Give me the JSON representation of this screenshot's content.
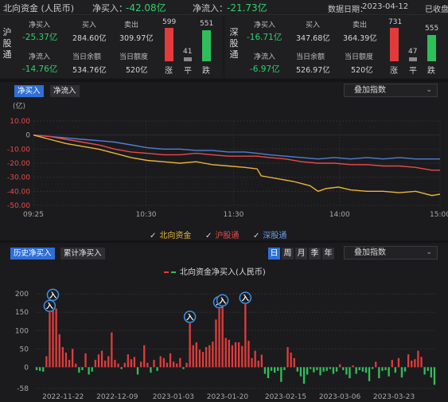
{
  "header": {
    "title": "北向资金 (人民币)",
    "net_buy_label": "净买入：",
    "net_buy_value": "-42.08亿",
    "net_inflow_label": "净流入：",
    "net_inflow_value": "-21.73亿",
    "date_label": "数据日期：",
    "date_value": "2023-04-12",
    "status": "已收盘"
  },
  "panels": [
    {
      "name": "沪股通",
      "net_buy_label": "净买入",
      "net_buy_value": "-25.37亿",
      "buy_label": "买入",
      "buy_value": "284.60亿",
      "sell_label": "卖出",
      "sell_value": "309.97亿",
      "net_inflow_label": "净流入",
      "net_inflow_value": "-14.76亿",
      "balance_label": "当日余额",
      "balance_value": "534.76亿",
      "quota_label": "当日额度",
      "quota_value": "520亿",
      "up_count": "599",
      "flat_count": "41",
      "down_count": "551",
      "up_label": "涨",
      "flat_label": "平",
      "down_label": "跌"
    },
    {
      "name": "深股通",
      "net_buy_label": "净买入",
      "net_buy_value": "-16.71亿",
      "buy_label": "买入",
      "buy_value": "347.68亿",
      "sell_label": "卖出",
      "sell_value": "364.39亿",
      "net_inflow_label": "净流入",
      "net_inflow_value": "-6.97亿",
      "balance_label": "当日余额",
      "balance_value": "526.97亿",
      "quota_label": "当日额度",
      "quota_value": "520亿",
      "up_count": "731",
      "flat_count": "47",
      "down_count": "555",
      "up_label": "涨",
      "flat_label": "平",
      "down_label": "跌"
    }
  ],
  "intraday_tabs": [
    "净买入",
    "净流入"
  ],
  "overlay_label": "叠加指数",
  "history_tabs": [
    "历史净买入",
    "累计净买入"
  ],
  "period_buttons": [
    "日",
    "周",
    "月",
    "季",
    "年"
  ],
  "colors": {
    "north": "#e8b43a",
    "sh": "#e84a4a",
    "sz": "#4f7fd4",
    "up": "#e23b3b",
    "down": "#2fbf5a",
    "accent": "#2f6fd6"
  },
  "chart_data": [
    {
      "type": "line",
      "ylabel": "(亿)",
      "ylim": [
        -50,
        10
      ],
      "yticks": [
        "10.00",
        "0",
        "-10.00",
        "-20.00",
        "-30.00",
        "-40.00",
        "-50.00"
      ],
      "xticks": [
        "09:25",
        "10:30",
        "11:30",
        "14:00",
        "15:00"
      ],
      "legend": [
        "北向资金",
        "沪股通",
        "深股通"
      ],
      "series": [
        {
          "name": "北向资金",
          "points": [
            [
              0,
              0
            ],
            [
              4,
              -3
            ],
            [
              8,
              -6
            ],
            [
              12,
              -8
            ],
            [
              16,
              -10
            ],
            [
              20,
              -13
            ],
            [
              24,
              -16
            ],
            [
              28,
              -18
            ],
            [
              32,
              -19
            ],
            [
              36,
              -20
            ],
            [
              40,
              -19
            ],
            [
              44,
              -21
            ],
            [
              48,
              -22
            ],
            [
              52,
              -23
            ],
            [
              55,
              -24
            ],
            [
              56,
              -29
            ],
            [
              60,
              -31
            ],
            [
              64,
              -33
            ],
            [
              68,
              -36
            ],
            [
              70,
              -40
            ],
            [
              72,
              -38
            ],
            [
              75,
              -37
            ],
            [
              78,
              -39
            ],
            [
              82,
              -40
            ],
            [
              86,
              -40
            ],
            [
              90,
              -41
            ],
            [
              94,
              -40
            ],
            [
              98,
              -43
            ],
            [
              100,
              -42
            ]
          ]
        },
        {
          "name": "沪股通",
          "points": [
            [
              0,
              0
            ],
            [
              4,
              -1
            ],
            [
              8,
              -3
            ],
            [
              12,
              -5
            ],
            [
              16,
              -7
            ],
            [
              20,
              -10
            ],
            [
              24,
              -12
            ],
            [
              28,
              -13
            ],
            [
              32,
              -14
            ],
            [
              36,
              -14
            ],
            [
              40,
              -13
            ],
            [
              44,
              -14
            ],
            [
              48,
              -15
            ],
            [
              52,
              -15
            ],
            [
              55,
              -15
            ],
            [
              58,
              -16
            ],
            [
              62,
              -17
            ],
            [
              66,
              -19
            ],
            [
              70,
              -20
            ],
            [
              74,
              -20
            ],
            [
              78,
              -21
            ],
            [
              82,
              -21
            ],
            [
              86,
              -22
            ],
            [
              90,
              -22
            ],
            [
              94,
              -23
            ],
            [
              98,
              -25
            ],
            [
              100,
              -25
            ]
          ]
        },
        {
          "name": "深股通",
          "points": [
            [
              0,
              0
            ],
            [
              4,
              -1
            ],
            [
              8,
              -2
            ],
            [
              12,
              -3
            ],
            [
              16,
              -4
            ],
            [
              20,
              -5
            ],
            [
              24,
              -7
            ],
            [
              28,
              -9
            ],
            [
              32,
              -10
            ],
            [
              36,
              -10
            ],
            [
              40,
              -11
            ],
            [
              44,
              -11
            ],
            [
              48,
              -12
            ],
            [
              52,
              -12
            ],
            [
              55,
              -13
            ],
            [
              58,
              -14
            ],
            [
              62,
              -15
            ],
            [
              66,
              -16
            ],
            [
              70,
              -17
            ],
            [
              74,
              -16
            ],
            [
              78,
              -17
            ],
            [
              82,
              -16
            ],
            [
              86,
              -17
            ],
            [
              90,
              -16
            ],
            [
              94,
              -17
            ],
            [
              98,
              -17
            ],
            [
              100,
              -17
            ]
          ]
        }
      ]
    },
    {
      "type": "bar",
      "title": "北向资金净买入(人民币)",
      "ylim": [
        -58,
        220
      ],
      "yticks": [
        "200",
        "150",
        "100",
        "50",
        "0",
        "-58"
      ],
      "xticks": [
        "2022-11-22",
        "2022-12-09",
        "2023-01-03",
        "2023-01-20",
        "2023-02-15",
        "2023-03-06",
        "2023-03-23"
      ],
      "values": [
        -8,
        -10,
        -12,
        30,
        150,
        180,
        160,
        90,
        55,
        40,
        20,
        50,
        10,
        -15,
        -8,
        38,
        -20,
        -12,
        20,
        35,
        45,
        18,
        30,
        95,
        20,
        10,
        -5,
        12,
        35,
        22,
        28,
        -20,
        15,
        60,
        12,
        -15,
        20,
        -10,
        30,
        25,
        12,
        38,
        15,
        10,
        25,
        -5,
        12,
        120,
        60,
        68,
        48,
        42,
        55,
        60,
        70,
        130,
        160,
        165,
        80,
        75,
        60,
        68,
        68,
        58,
        172,
        72,
        25,
        45,
        18,
        34,
        -18,
        -30,
        -10,
        -15,
        -10,
        -40,
        -8,
        55,
        40,
        25,
        -12,
        -25,
        -45,
        -20,
        -5,
        -14,
        -8,
        -22,
        -12,
        -10,
        -5,
        -18,
        -12,
        8,
        -8,
        -20,
        -30,
        5,
        -18,
        -8,
        -12,
        -15,
        -38,
        -5,
        15,
        -30,
        -10,
        -8,
        -25,
        20,
        -15,
        25,
        -28,
        -12,
        35,
        18,
        22,
        45,
        28,
        -20,
        -10,
        -28,
        -48
      ],
      "markers": [
        {
          "index": 4,
          "label": "入"
        },
        {
          "index": 5,
          "label": "入"
        },
        {
          "index": 47,
          "label": "入"
        },
        {
          "index": 56,
          "label": "入"
        },
        {
          "index": 57,
          "label": "入"
        },
        {
          "index": 64,
          "label": "入"
        }
      ]
    }
  ]
}
